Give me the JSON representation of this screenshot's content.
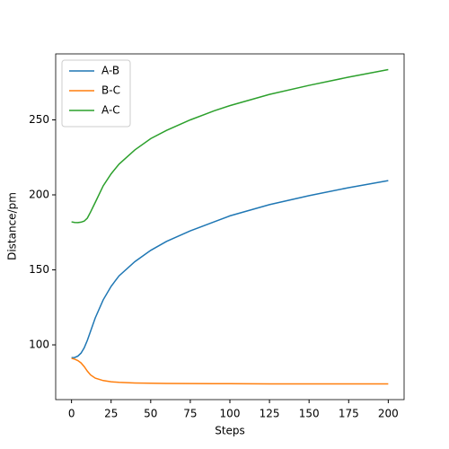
{
  "chart_data": {
    "type": "line",
    "xlabel": "Steps",
    "ylabel": "Distance/pm",
    "x": [
      0,
      2,
      4,
      6,
      8,
      10,
      12,
      15,
      20,
      25,
      30,
      40,
      50,
      60,
      75,
      90,
      100,
      125,
      150,
      175,
      200
    ],
    "series": [
      {
        "name": "A-B",
        "color": "#1f77b4",
        "values": [
          91.5,
          91.6,
          92.5,
          94.5,
          98,
          103,
          109,
          118,
          130,
          139,
          146,
          155.5,
          163,
          169,
          176,
          182,
          186,
          193.5,
          199.5,
          204.8,
          209.5
        ]
      },
      {
        "name": "B-C",
        "color": "#ff7f0e",
        "values": [
          91,
          90.5,
          89.5,
          88,
          85.5,
          82.5,
          80,
          77.8,
          76.2,
          75.4,
          75,
          74.6,
          74.4,
          74.3,
          74.2,
          74.1,
          74.1,
          74,
          74,
          74,
          74
        ]
      },
      {
        "name": "A-C",
        "color": "#2ca02c",
        "values": [
          182,
          181.6,
          181.5,
          181.8,
          182.5,
          184.5,
          188.5,
          195,
          206,
          214,
          220.5,
          230,
          237.5,
          243,
          250,
          256,
          259.5,
          267,
          273,
          278.5,
          283.5
        ]
      }
    ],
    "xlim": [
      -10,
      210
    ],
    "xticks": [
      0,
      25,
      50,
      75,
      100,
      125,
      150,
      175,
      200
    ],
    "ylim": [
      63.5,
      294
    ],
    "yticks": [
      100,
      150,
      200,
      250
    ],
    "legend": "upper left",
    "grid": false
  }
}
